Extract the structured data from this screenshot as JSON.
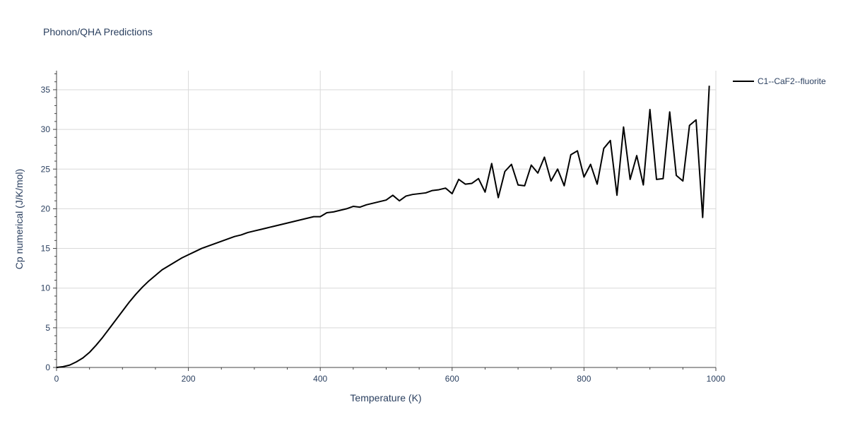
{
  "chart_data": {
    "type": "line",
    "title": "Phonon/QHA Predictions",
    "xlabel": "Temperature (K)",
    "ylabel": "Cp numerical (J/K/mol)",
    "xlim": [
      0,
      1000
    ],
    "ylim": [
      0,
      37.4
    ],
    "x_ticks": [
      0,
      200,
      400,
      600,
      800,
      1000
    ],
    "y_ticks": [
      0,
      5,
      10,
      15,
      20,
      25,
      30,
      35
    ],
    "grid": true,
    "legend_position": "top-right",
    "series": [
      {
        "name": "C1--CaF2--fluorite",
        "color": "#000000",
        "x": [
          0,
          10,
          20,
          30,
          40,
          50,
          60,
          70,
          80,
          90,
          100,
          110,
          120,
          130,
          140,
          150,
          160,
          170,
          180,
          190,
          200,
          210,
          220,
          230,
          240,
          250,
          260,
          270,
          280,
          290,
          300,
          310,
          320,
          330,
          340,
          350,
          360,
          370,
          380,
          390,
          400,
          410,
          420,
          430,
          440,
          450,
          460,
          470,
          480,
          490,
          500,
          510,
          520,
          530,
          540,
          550,
          560,
          570,
          580,
          590,
          600,
          610,
          620,
          630,
          640,
          650,
          660,
          670,
          680,
          690,
          700,
          710,
          720,
          730,
          740,
          750,
          760,
          770,
          780,
          790,
          800,
          810,
          820,
          830,
          840,
          850,
          860,
          870,
          880,
          890,
          900,
          910,
          920,
          930,
          940,
          950,
          960,
          970,
          980,
          990
        ],
        "y": [
          0,
          0.1,
          0.3,
          0.7,
          1.2,
          1.9,
          2.8,
          3.8,
          4.9,
          6.0,
          7.1,
          8.2,
          9.2,
          10.1,
          10.9,
          11.6,
          12.3,
          12.8,
          13.3,
          13.8,
          14.2,
          14.6,
          15.0,
          15.3,
          15.6,
          15.9,
          16.2,
          16.5,
          16.7,
          17.0,
          17.2,
          17.4,
          17.6,
          17.8,
          18.0,
          18.2,
          18.4,
          18.6,
          18.8,
          19.0,
          19.0,
          19.5,
          19.6,
          19.8,
          20.0,
          20.3,
          20.2,
          20.5,
          20.7,
          20.9,
          21.1,
          21.7,
          21.0,
          21.6,
          21.8,
          21.9,
          22.0,
          22.3,
          22.4,
          22.6,
          21.9,
          23.7,
          23.1,
          23.2,
          23.8,
          22.1,
          25.7,
          21.4,
          24.7,
          25.6,
          23.0,
          22.9,
          25.5,
          24.5,
          26.5,
          23.5,
          25.0,
          22.9,
          26.8,
          27.3,
          24.0,
          25.6,
          23.1,
          27.6,
          28.6,
          21.7,
          30.3,
          23.7,
          26.7,
          23.0,
          32.5,
          23.7,
          23.8,
          32.2,
          24.2,
          23.5,
          30.5,
          31.2,
          18.9,
          35.5
        ]
      }
    ]
  }
}
